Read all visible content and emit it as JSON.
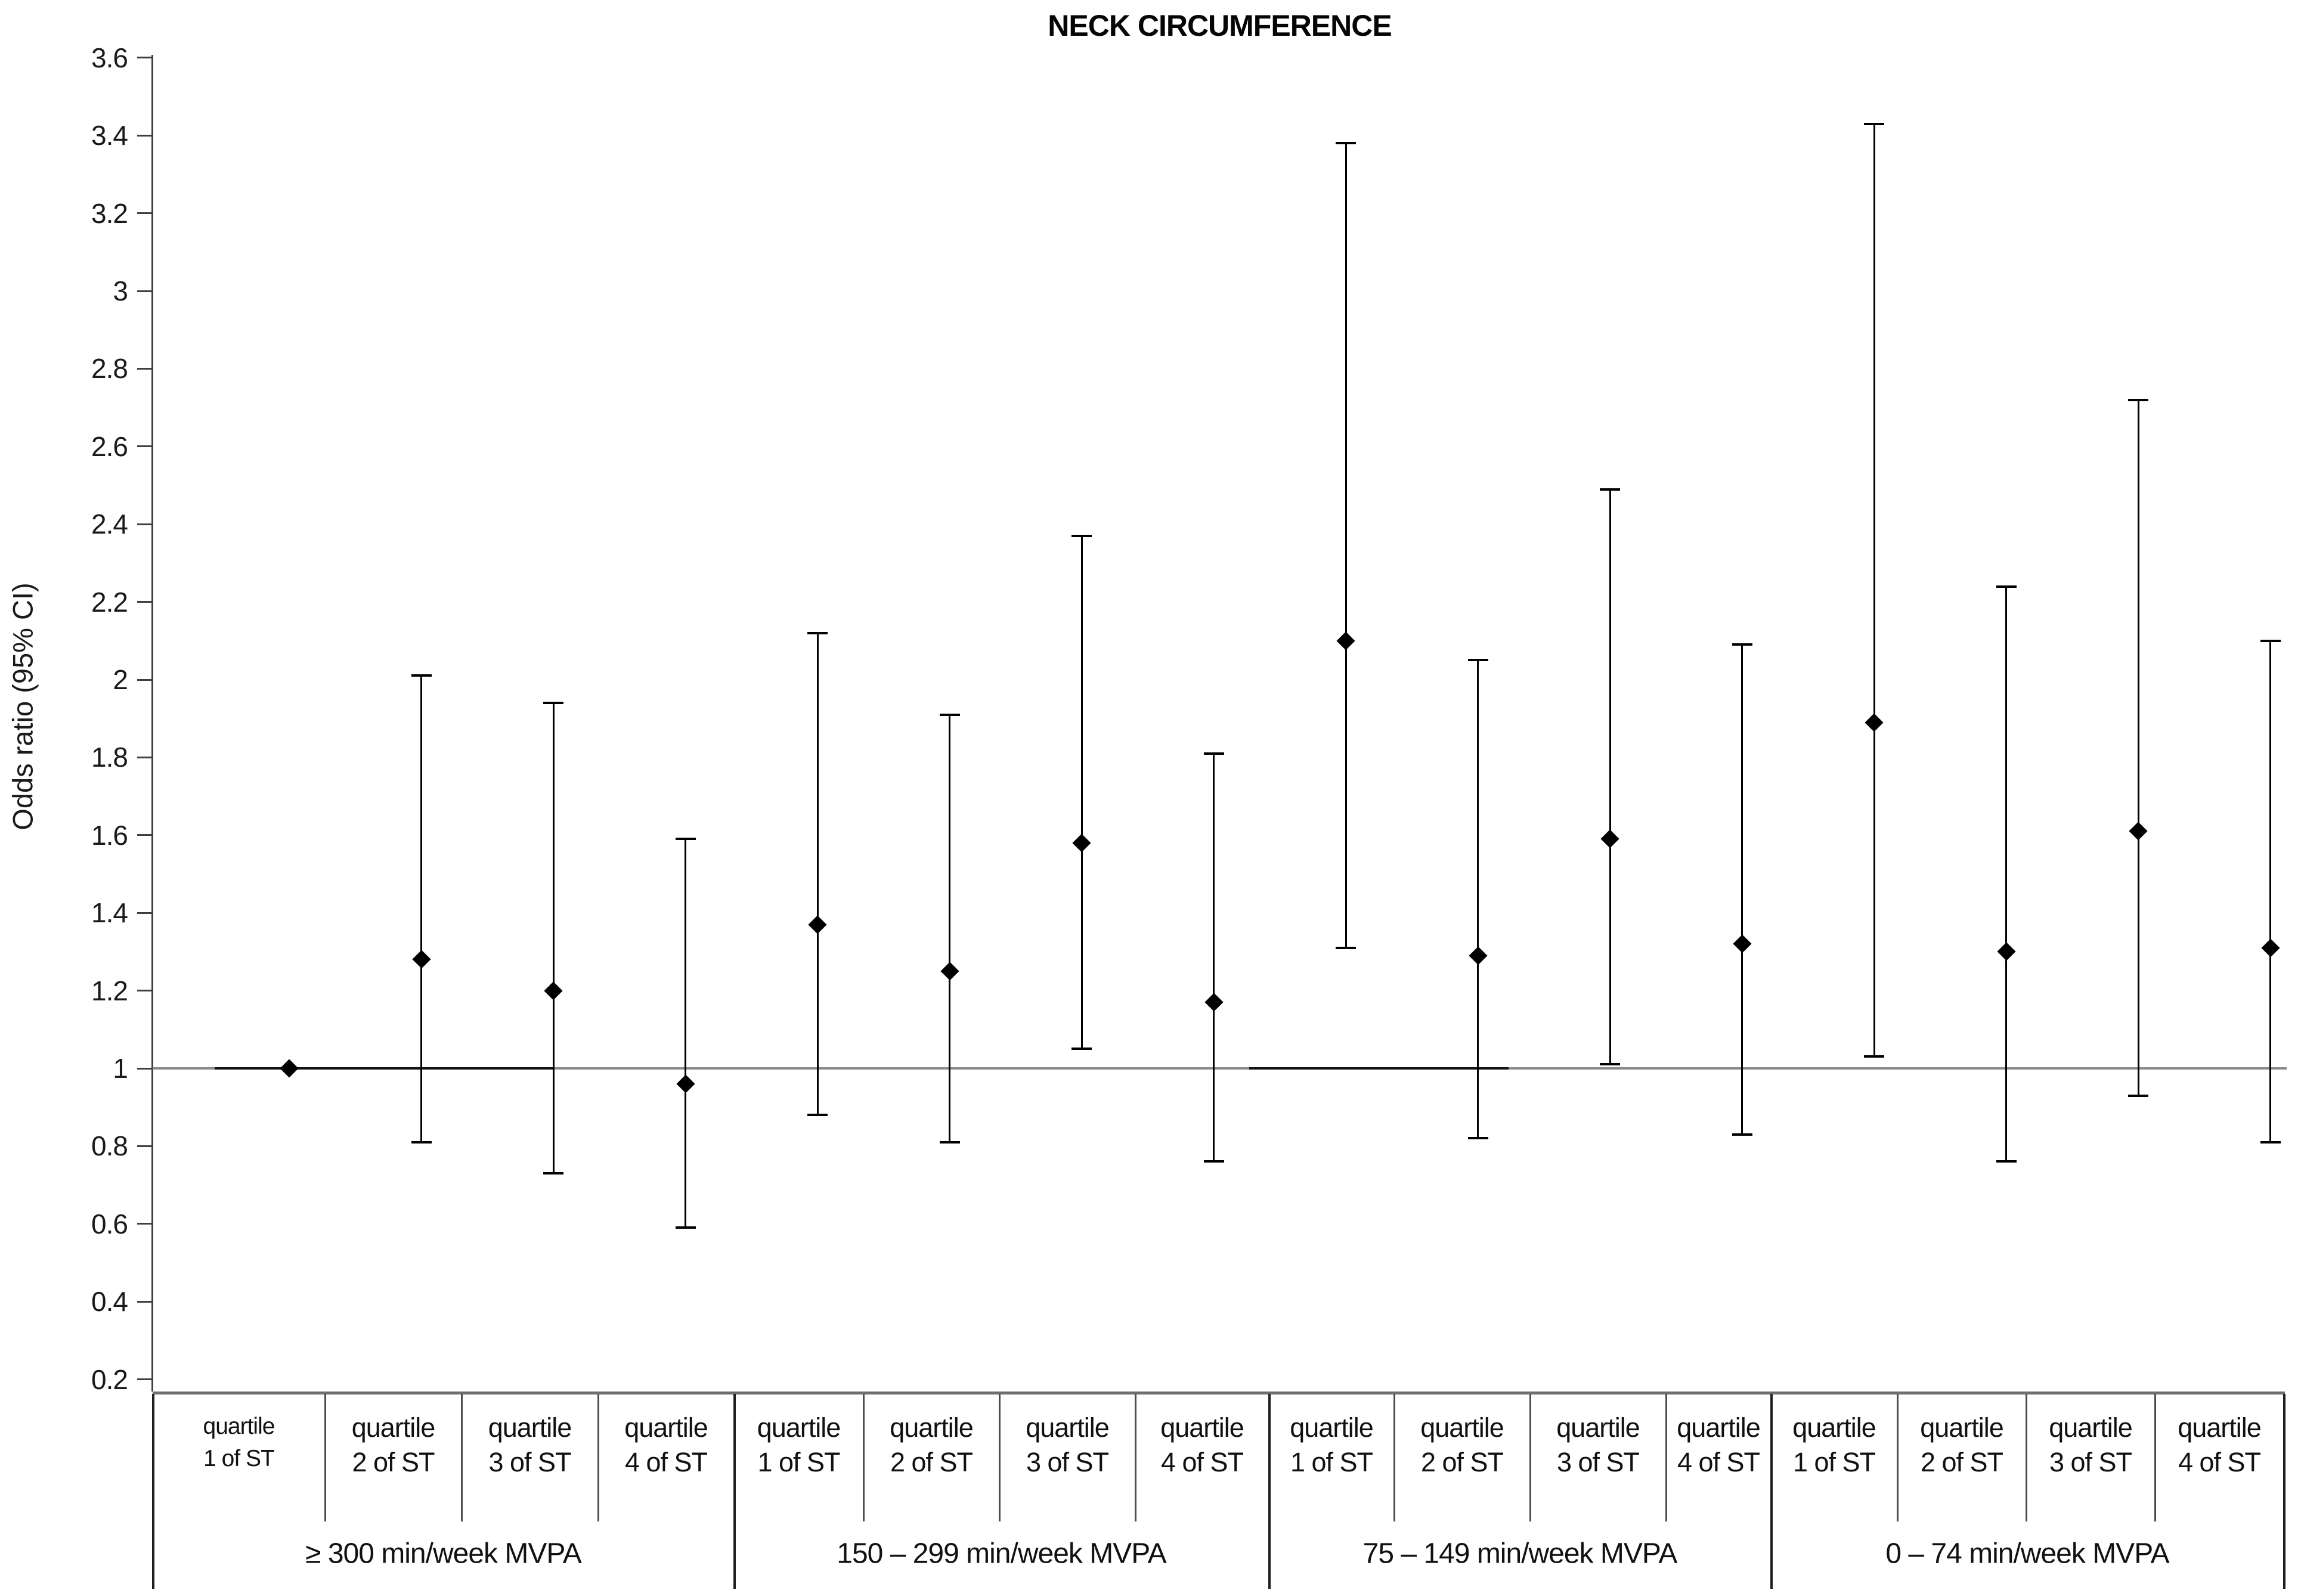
{
  "title": "NECK CIRCUMFERENCE",
  "y_axis": {
    "label": "Odds ratio (95% CI)",
    "ticks": [
      "3.6",
      "3.4",
      "3.2",
      "3",
      "2.8",
      "2.6",
      "2.4",
      "2.2",
      "2",
      "1.8",
      "1.6",
      "1.4",
      "1.2",
      "1",
      "0.8",
      "0.6",
      "0.4",
      "0.2"
    ]
  },
  "colors": {
    "marker": "#000000",
    "error_bar": "#000000",
    "reference_line_gray": "#8c8c8c",
    "reference_line_black": "#141414",
    "text": "#111111"
  },
  "chart_data": {
    "type": "scatter",
    "subtype": "forest-plot-error-bars",
    "title": "NECK CIRCUMFERENCE",
    "ylabel": "Odds ratio (95% CI)",
    "ylim": [
      0.2,
      3.6
    ],
    "ytick_interval": 0.2,
    "reference_line": 1.0,
    "marker_shape": "diamond",
    "legend": "none",
    "grid": "off",
    "groups": [
      {
        "label": "≥ 300 min/week MVPA",
        "points": [
          {
            "quartile": "quartile 1 of ST",
            "or": 1.0,
            "ci_low": null,
            "ci_high": null,
            "reference": true
          },
          {
            "quartile": "quartile 2 of ST",
            "or": 1.28,
            "ci_low": 0.81,
            "ci_high": 2.01
          },
          {
            "quartile": "quartile 3 of ST",
            "or": 1.2,
            "ci_low": 0.73,
            "ci_high": 1.94
          },
          {
            "quartile": "quartile 4 of ST",
            "or": 0.96,
            "ci_low": 0.59,
            "ci_high": 1.59
          }
        ]
      },
      {
        "label": "150 – 299 min/week MVPA",
        "points": [
          {
            "quartile": "quartile 1 of ST",
            "or": 1.37,
            "ci_low": 0.88,
            "ci_high": 2.12
          },
          {
            "quartile": "quartile 2 of ST",
            "or": 1.25,
            "ci_low": 0.81,
            "ci_high": 1.91
          },
          {
            "quartile": "quartile 3 of ST",
            "or": 1.58,
            "ci_low": 1.05,
            "ci_high": 2.37
          },
          {
            "quartile": "quartile 4 of ST",
            "or": 1.17,
            "ci_low": 0.76,
            "ci_high": 1.81
          }
        ]
      },
      {
        "label": "75 – 149 min/week MVPA",
        "points": [
          {
            "quartile": "quartile 1 of ST",
            "or": 2.1,
            "ci_low": 1.31,
            "ci_high": 3.38
          },
          {
            "quartile": "quartile 2 of ST",
            "or": 1.29,
            "ci_low": 0.82,
            "ci_high": 2.05
          },
          {
            "quartile": "quartile 3 of ST",
            "or": 1.59,
            "ci_low": 1.01,
            "ci_high": 2.49
          },
          {
            "quartile": "quartile 4 of ST",
            "or": 1.32,
            "ci_low": 0.83,
            "ci_high": 2.09
          }
        ]
      },
      {
        "label": "0 – 74 min/week MVPA",
        "points": [
          {
            "quartile": "quartile 1 of ST",
            "or": 1.89,
            "ci_low": 1.03,
            "ci_high": 3.43
          },
          {
            "quartile": "quartile 2 of ST",
            "or": 1.3,
            "ci_low": 0.76,
            "ci_high": 2.24
          },
          {
            "quartile": "quartile 3 of ST",
            "or": 1.61,
            "ci_low": 0.93,
            "ci_high": 2.72
          },
          {
            "quartile": "quartile 4 of ST",
            "or": 1.31,
            "ci_low": 0.81,
            "ci_high": 2.1
          }
        ]
      }
    ]
  }
}
